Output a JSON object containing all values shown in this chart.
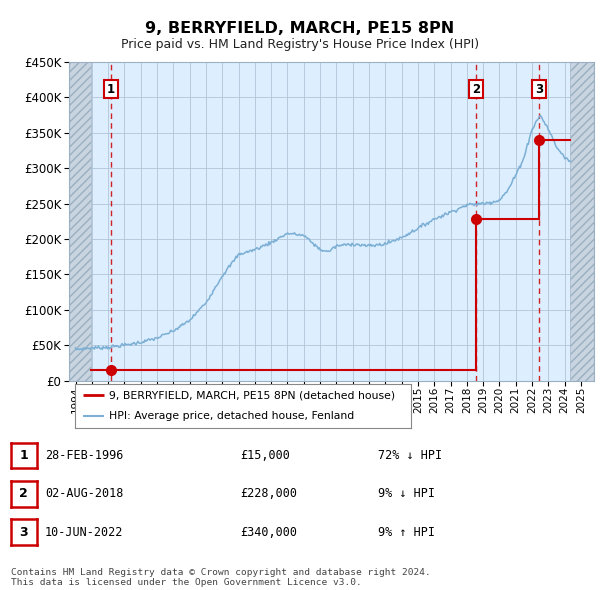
{
  "title": "9, BERRYFIELD, MARCH, PE15 8PN",
  "subtitle": "Price paid vs. HM Land Registry's House Price Index (HPI)",
  "ylim": [
    0,
    450000
  ],
  "yticks": [
    0,
    50000,
    100000,
    150000,
    200000,
    250000,
    300000,
    350000,
    400000,
    450000
  ],
  "xlim_start": 1993.6,
  "xlim_end": 2025.8,
  "hatch_left_end": 1994.92,
  "hatch_right_start": 2024.33,
  "background_color": "#ffffff",
  "plot_bg_color": "#ddeeff",
  "hatch_bg_color": "#c8d4e0",
  "grid_color": "#b0c4d8",
  "sale_dates": [
    1996.16,
    2018.58,
    2022.44
  ],
  "sale_prices": [
    15000,
    228000,
    340000
  ],
  "sale_labels": [
    "1",
    "2",
    "3"
  ],
  "hpi_line_color": "#7bafd4",
  "price_line_color": "#cc0000",
  "sale_dot_color": "#cc0000",
  "vline_color": "#cc0000",
  "legend_label_price": "9, BERRYFIELD, MARCH, PE15 8PN (detached house)",
  "legend_label_hpi": "HPI: Average price, detached house, Fenland",
  "table_data": [
    [
      "1",
      "28-FEB-1996",
      "£15,000",
      "72% ↓ HPI"
    ],
    [
      "2",
      "02-AUG-2018",
      "£228,000",
      "9% ↓ HPI"
    ],
    [
      "3",
      "10-JUN-2022",
      "£340,000",
      "9% ↑ HPI"
    ]
  ],
  "footer": "Contains HM Land Registry data © Crown copyright and database right 2024.\nThis data is licensed under the Open Government Licence v3.0."
}
